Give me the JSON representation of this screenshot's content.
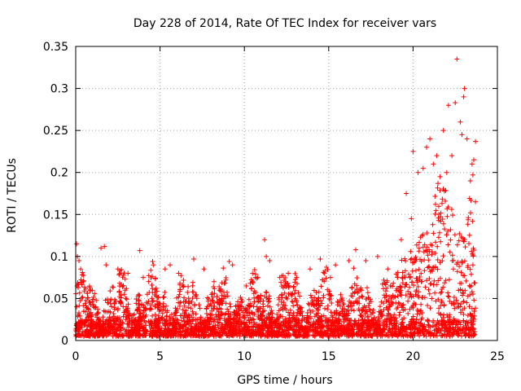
{
  "chart_data": {
    "type": "scatter",
    "title": "Day 228 of 2014, Rate Of TEC Index for receiver vars",
    "xlabel": "GPS time / hours",
    "ylabel": "ROTI / TECUs",
    "xlim": [
      0,
      25
    ],
    "ylim": [
      0,
      0.35
    ],
    "grid": true,
    "marker": "+",
    "color": "#ff0000",
    "xticks": [
      {
        "value": 0,
        "label": "0"
      },
      {
        "value": 5,
        "label": "5"
      },
      {
        "value": 10,
        "label": "10"
      },
      {
        "value": 15,
        "label": "15"
      },
      {
        "value": 20,
        "label": "20"
      },
      {
        "value": 25,
        "label": "25"
      }
    ],
    "yticks": [
      {
        "value": 0,
        "label": "0"
      },
      {
        "value": 0.05,
        "label": "0.05"
      },
      {
        "value": 0.1,
        "label": "0.1"
      },
      {
        "value": 0.15,
        "label": "0.15"
      },
      {
        "value": 0.2,
        "label": "0.2"
      },
      {
        "value": 0.25,
        "label": "0.25"
      },
      {
        "value": 0.3,
        "label": "0.3"
      },
      {
        "value": 0.35,
        "label": "0.35"
      }
    ],
    "series": [
      {
        "name": "ROTI",
        "x": [
          0.05,
          0.1,
          0.2,
          0.3,
          0.45,
          1.5,
          1.7,
          1.8,
          2.5,
          3.1,
          3.8,
          4.0,
          4.6,
          5.3,
          5.6,
          6.1,
          7.0,
          7.6,
          8.2,
          9.1,
          9.3,
          10.1,
          10.8,
          11.2,
          11.3,
          11.5,
          12.1,
          12.6,
          13.1,
          13.9,
          14.5,
          15.1,
          15.4,
          16.2,
          16.6,
          17.2,
          17.9,
          18.5,
          19.3,
          19.6,
          19.9,
          20.0,
          20.3,
          20.6,
          20.8,
          21.0,
          21.2,
          21.4,
          21.6,
          21.8,
          22.0,
          22.1,
          22.3,
          22.5,
          22.6,
          22.8,
          22.9,
          23.0,
          23.05,
          23.2,
          23.4,
          23.5,
          23.6,
          23.7
        ],
        "y": [
          0.115,
          0.1,
          0.095,
          0.085,
          0.07,
          0.11,
          0.112,
          0.09,
          0.085,
          0.08,
          0.107,
          0.075,
          0.09,
          0.085,
          0.09,
          0.08,
          0.097,
          0.085,
          0.07,
          0.094,
          0.09,
          0.065,
          0.075,
          0.12,
          0.1,
          0.095,
          0.075,
          0.08,
          0.075,
          0.085,
          0.097,
          0.075,
          0.09,
          0.095,
          0.108,
          0.095,
          0.1,
          0.085,
          0.12,
          0.175,
          0.145,
          0.225,
          0.2,
          0.205,
          0.23,
          0.24,
          0.21,
          0.22,
          0.195,
          0.25,
          0.2,
          0.28,
          0.22,
          0.283,
          0.335,
          0.26,
          0.245,
          0.29,
          0.3,
          0.24,
          0.19,
          0.21,
          0.215,
          0.237
        ]
      }
    ]
  }
}
